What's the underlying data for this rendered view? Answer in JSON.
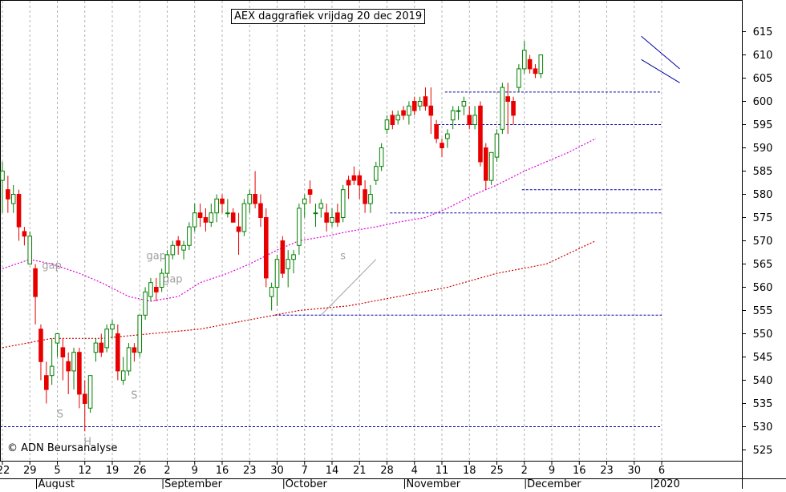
{
  "title": "AEX daggrafiek vrijdag 20 dec 2019",
  "copyright": "© ADN Beursanalyse",
  "colors": {
    "up": "#008000",
    "down": "#e80000",
    "ma_short": "#dd00dd",
    "ma_long": "#cc0000",
    "support": "#0000aa",
    "grid": "#b4b4b4",
    "annotation": "#a0a0a0"
  },
  "chart_data": {
    "type": "candlestick",
    "title": "AEX daggrafiek vrijdag 20 dec 2019",
    "ylim": [
      520,
      620
    ],
    "y_ticks": [
      525,
      530,
      535,
      540,
      545,
      550,
      555,
      560,
      565,
      570,
      575,
      580,
      585,
      590,
      595,
      600,
      605,
      610,
      615
    ],
    "x_day_ticks": [
      {
        "label": "22",
        "day": 0
      },
      {
        "label": "29",
        "day": 5
      },
      {
        "label": "5",
        "day": 10
      },
      {
        "label": "12",
        "day": 15
      },
      {
        "label": "19",
        "day": 20
      },
      {
        "label": "26",
        "day": 25
      },
      {
        "label": "2",
        "day": 30
      },
      {
        "label": "9",
        "day": 35
      },
      {
        "label": "16",
        "day": 40
      },
      {
        "label": "23",
        "day": 45
      },
      {
        "label": "30",
        "day": 50
      },
      {
        "label": "7",
        "day": 55
      },
      {
        "label": "14",
        "day": 60
      },
      {
        "label": "21",
        "day": 65
      },
      {
        "label": "28",
        "day": 70
      },
      {
        "label": "4",
        "day": 75
      },
      {
        "label": "11",
        "day": 80
      },
      {
        "label": "18",
        "day": 85
      },
      {
        "label": "25",
        "day": 90
      },
      {
        "label": "2",
        "day": 95
      },
      {
        "label": "9",
        "day": 100
      },
      {
        "label": "16",
        "day": 105
      },
      {
        "label": "23",
        "day": 110
      },
      {
        "label": "30",
        "day": 115
      },
      {
        "label": "6",
        "day": 120
      }
    ],
    "month_ticks": [
      {
        "label": "August",
        "day": 6.5
      },
      {
        "label": "September",
        "day": 29.5
      },
      {
        "label": "October",
        "day": 51.5
      },
      {
        "label": "November",
        "day": 73.5
      },
      {
        "label": "December",
        "day": 95.5
      },
      {
        "label": "2020",
        "day": 118.5
      }
    ],
    "candles": [
      {
        "o": 583,
        "h": 587,
        "l": 576,
        "c": 585
      },
      {
        "o": 581,
        "h": 584,
        "l": 576,
        "c": 579
      },
      {
        "o": 578,
        "h": 582,
        "l": 576,
        "c": 580
      },
      {
        "o": 580,
        "h": 581,
        "l": 570,
        "c": 573
      },
      {
        "o": 572,
        "h": 573,
        "l": 569,
        "c": 571
      },
      {
        "o": 565,
        "h": 572,
        "l": 565,
        "c": 571
      },
      {
        "o": 564,
        "h": 565,
        "l": 552,
        "c": 558
      },
      {
        "o": 551,
        "h": 552,
        "l": 540,
        "c": 544
      },
      {
        "o": 541,
        "h": 544,
        "l": 535,
        "c": 538
      },
      {
        "o": 541,
        "h": 549,
        "l": 539,
        "c": 543
      },
      {
        "o": 548,
        "h": 550,
        "l": 545,
        "c": 550
      },
      {
        "o": 547,
        "h": 549,
        "l": 540,
        "c": 545
      },
      {
        "o": 544,
        "h": 546,
        "l": 537,
        "c": 542
      },
      {
        "o": 542,
        "h": 547,
        "l": 538,
        "c": 546
      },
      {
        "o": 546,
        "h": 547,
        "l": 534,
        "c": 537
      },
      {
        "o": 537,
        "h": 540,
        "l": 529,
        "c": 535
      },
      {
        "o": 534,
        "h": 541,
        "l": 533,
        "c": 541
      },
      {
        "o": 546,
        "h": 549,
        "l": 544,
        "c": 548
      },
      {
        "o": 548,
        "h": 550,
        "l": 545,
        "c": 546
      },
      {
        "o": 547,
        "h": 552,
        "l": 546,
        "c": 551
      },
      {
        "o": 551,
        "h": 553,
        "l": 549,
        "c": 552
      },
      {
        "o": 550,
        "h": 552,
        "l": 540,
        "c": 542
      },
      {
        "o": 540,
        "h": 545,
        "l": 539,
        "c": 542
      },
      {
        "o": 542,
        "h": 548,
        "l": 541,
        "c": 547
      },
      {
        "o": 547,
        "h": 548,
        "l": 544,
        "c": 546
      },
      {
        "o": 546,
        "h": 554,
        "l": 545,
        "c": 554
      },
      {
        "o": 554,
        "h": 560,
        "l": 553,
        "c": 559
      },
      {
        "o": 558,
        "h": 562,
        "l": 557,
        "c": 561
      },
      {
        "o": 560,
        "h": 562,
        "l": 557,
        "c": 559
      },
      {
        "o": 560,
        "h": 564,
        "l": 559,
        "c": 563
      },
      {
        "o": 563,
        "h": 568,
        "l": 562,
        "c": 567
      },
      {
        "o": 567,
        "h": 570,
        "l": 566,
        "c": 569
      },
      {
        "o": 570,
        "h": 571,
        "l": 567,
        "c": 569
      },
      {
        "o": 568,
        "h": 570,
        "l": 566,
        "c": 569
      },
      {
        "o": 569,
        "h": 574,
        "l": 568,
        "c": 573
      },
      {
        "o": 573,
        "h": 578,
        "l": 572,
        "c": 576
      },
      {
        "o": 576,
        "h": 578,
        "l": 573,
        "c": 575
      },
      {
        "o": 575,
        "h": 577,
        "l": 572,
        "c": 574
      },
      {
        "o": 574,
        "h": 578,
        "l": 573,
        "c": 576
      },
      {
        "o": 576,
        "h": 580,
        "l": 574,
        "c": 579
      },
      {
        "o": 579,
        "h": 580,
        "l": 576,
        "c": 578
      },
      {
        "o": 576,
        "h": 579,
        "l": 575,
        "c": 576
      },
      {
        "o": 576,
        "h": 577,
        "l": 574,
        "c": 574
      },
      {
        "o": 573,
        "h": 576,
        "l": 567,
        "c": 572
      },
      {
        "o": 572,
        "h": 579,
        "l": 571,
        "c": 578
      },
      {
        "o": 578,
        "h": 581,
        "l": 576,
        "c": 580
      },
      {
        "o": 580,
        "h": 585,
        "l": 577,
        "c": 578
      },
      {
        "o": 578,
        "h": 580,
        "l": 573,
        "c": 575
      },
      {
        "o": 575,
        "h": 577,
        "l": 560,
        "c": 562
      },
      {
        "o": 558,
        "h": 561,
        "l": 555,
        "c": 560
      },
      {
        "o": 560,
        "h": 567,
        "l": 556,
        "c": 566
      },
      {
        "o": 570,
        "h": 571,
        "l": 562,
        "c": 563
      },
      {
        "o": 564,
        "h": 568,
        "l": 560,
        "c": 566
      },
      {
        "o": 566,
        "h": 568,
        "l": 563,
        "c": 567
      },
      {
        "o": 569,
        "h": 578,
        "l": 567,
        "c": 577
      },
      {
        "o": 578,
        "h": 580,
        "l": 575,
        "c": 579
      },
      {
        "o": 581,
        "h": 583,
        "l": 578,
        "c": 580
      },
      {
        "o": 576,
        "h": 578,
        "l": 573,
        "c": 576
      },
      {
        "o": 577,
        "h": 579,
        "l": 575,
        "c": 578
      },
      {
        "o": 576,
        "h": 578,
        "l": 572,
        "c": 574
      },
      {
        "o": 574,
        "h": 577,
        "l": 573,
        "c": 575
      },
      {
        "o": 576,
        "h": 578,
        "l": 573,
        "c": 574
      },
      {
        "o": 575,
        "h": 582,
        "l": 574,
        "c": 581
      },
      {
        "o": 583,
        "h": 584,
        "l": 579,
        "c": 582
      },
      {
        "o": 584,
        "h": 586,
        "l": 582,
        "c": 583
      },
      {
        "o": 584,
        "h": 585,
        "l": 579,
        "c": 582
      },
      {
        "o": 581,
        "h": 583,
        "l": 576,
        "c": 578
      },
      {
        "o": 578,
        "h": 582,
        "l": 576,
        "c": 580
      },
      {
        "o": 583,
        "h": 587,
        "l": 582,
        "c": 586
      },
      {
        "o": 586,
        "h": 591,
        "l": 585,
        "c": 590
      },
      {
        "o": 594,
        "h": 597,
        "l": 593,
        "c": 596
      },
      {
        "o": 597,
        "h": 598,
        "l": 594,
        "c": 595
      },
      {
        "o": 596,
        "h": 598,
        "l": 595,
        "c": 597
      },
      {
        "o": 598,
        "h": 599,
        "l": 596,
        "c": 597
      },
      {
        "o": 597,
        "h": 600,
        "l": 595,
        "c": 599
      },
      {
        "o": 600,
        "h": 601,
        "l": 597,
        "c": 598
      },
      {
        "o": 599,
        "h": 601,
        "l": 598,
        "c": 600
      },
      {
        "o": 601,
        "h": 603,
        "l": 598,
        "c": 599
      },
      {
        "o": 599,
        "h": 603,
        "l": 593,
        "c": 597
      },
      {
        "o": 595,
        "h": 596,
        "l": 591,
        "c": 592
      },
      {
        "o": 591,
        "h": 592,
        "l": 588,
        "c": 590
      },
      {
        "o": 592,
        "h": 594,
        "l": 590,
        "c": 593
      },
      {
        "o": 596,
        "h": 599,
        "l": 594,
        "c": 598
      },
      {
        "o": 598,
        "h": 599,
        "l": 596,
        "c": 598
      },
      {
        "o": 599,
        "h": 601,
        "l": 597,
        "c": 600
      },
      {
        "o": 597,
        "h": 599,
        "l": 594,
        "c": 595
      },
      {
        "o": 595,
        "h": 599,
        "l": 594,
        "c": 597
      },
      {
        "o": 599,
        "h": 600,
        "l": 586,
        "c": 587
      },
      {
        "o": 590,
        "h": 591,
        "l": 581,
        "c": 583
      },
      {
        "o": 583,
        "h": 589,
        "l": 582,
        "c": 589
      },
      {
        "o": 588,
        "h": 594,
        "l": 587,
        "c": 593
      },
      {
        "o": 594,
        "h": 604,
        "l": 593,
        "c": 603
      },
      {
        "o": 601,
        "h": 604,
        "l": 593,
        "c": 600
      },
      {
        "o": 600,
        "h": 601,
        "l": 595,
        "c": 597
      },
      {
        "o": 603,
        "h": 608,
        "l": 602,
        "c": 607
      },
      {
        "o": 607,
        "h": 613,
        "l": 606,
        "c": 611
      },
      {
        "o": 609,
        "h": 610,
        "l": 606,
        "c": 607
      },
      {
        "o": 607,
        "h": 608,
        "l": 605,
        "c": 606
      },
      {
        "o": 606,
        "h": 610,
        "l": 605,
        "c": 610
      }
    ],
    "ma_short": [
      {
        "day": 0,
        "v": 564
      },
      {
        "day": 5,
        "v": 566
      },
      {
        "day": 9,
        "v": 565
      },
      {
        "day": 14,
        "v": 563
      },
      {
        "day": 18,
        "v": 561
      },
      {
        "day": 23,
        "v": 558
      },
      {
        "day": 27,
        "v": 557
      },
      {
        "day": 32,
        "v": 558
      },
      {
        "day": 36,
        "v": 561
      },
      {
        "day": 41,
        "v": 563
      },
      {
        "day": 45,
        "v": 565
      },
      {
        "day": 50,
        "v": 568
      },
      {
        "day": 54,
        "v": 570
      },
      {
        "day": 59,
        "v": 571
      },
      {
        "day": 63,
        "v": 572
      },
      {
        "day": 68,
        "v": 573
      },
      {
        "day": 72,
        "v": 574
      },
      {
        "day": 77,
        "v": 575
      },
      {
        "day": 81,
        "v": 577
      },
      {
        "day": 86,
        "v": 580
      },
      {
        "day": 90,
        "v": 582
      },
      {
        "day": 95,
        "v": 585
      },
      {
        "day": 99,
        "v": 587
      },
      {
        "day": 103,
        "v": 589
      },
      {
        "day": 108,
        "v": 592
      }
    ],
    "ma_long": [
      {
        "day": 0,
        "v": 547
      },
      {
        "day": 9,
        "v": 549
      },
      {
        "day": 18,
        "v": 549
      },
      {
        "day": 27,
        "v": 550
      },
      {
        "day": 36,
        "v": 551
      },
      {
        "day": 45,
        "v": 553
      },
      {
        "day": 54,
        "v": 555
      },
      {
        "day": 63,
        "v": 556
      },
      {
        "day": 72,
        "v": 558
      },
      {
        "day": 81,
        "v": 560
      },
      {
        "day": 90,
        "v": 563
      },
      {
        "day": 99,
        "v": 565
      },
      {
        "day": 108,
        "v": 570
      }
    ],
    "support_lines": [
      {
        "v": 530,
        "from": 0,
        "to": 120
      },
      {
        "v": 554,
        "from": 50,
        "to": 120
      },
      {
        "v": 576,
        "from": 71,
        "to": 120
      },
      {
        "v": 581,
        "from": 95,
        "to": 120
      },
      {
        "v": 595,
        "from": 79,
        "to": 120
      },
      {
        "v": 602,
        "from": 81,
        "to": 120
      }
    ],
    "annotations": [
      {
        "text": "gap",
        "day": 9,
        "v": 564
      },
      {
        "text": "gap",
        "day": 28,
        "v": 566
      },
      {
        "text": "gap",
        "day": 31,
        "v": 561
      },
      {
        "text": "S",
        "day": 10.5,
        "v": 532
      },
      {
        "text": "S",
        "day": 24,
        "v": 536
      },
      {
        "text": "H",
        "day": 15.5,
        "v": 526
      },
      {
        "text": "s",
        "day": 62,
        "v": 566
      }
    ]
  }
}
